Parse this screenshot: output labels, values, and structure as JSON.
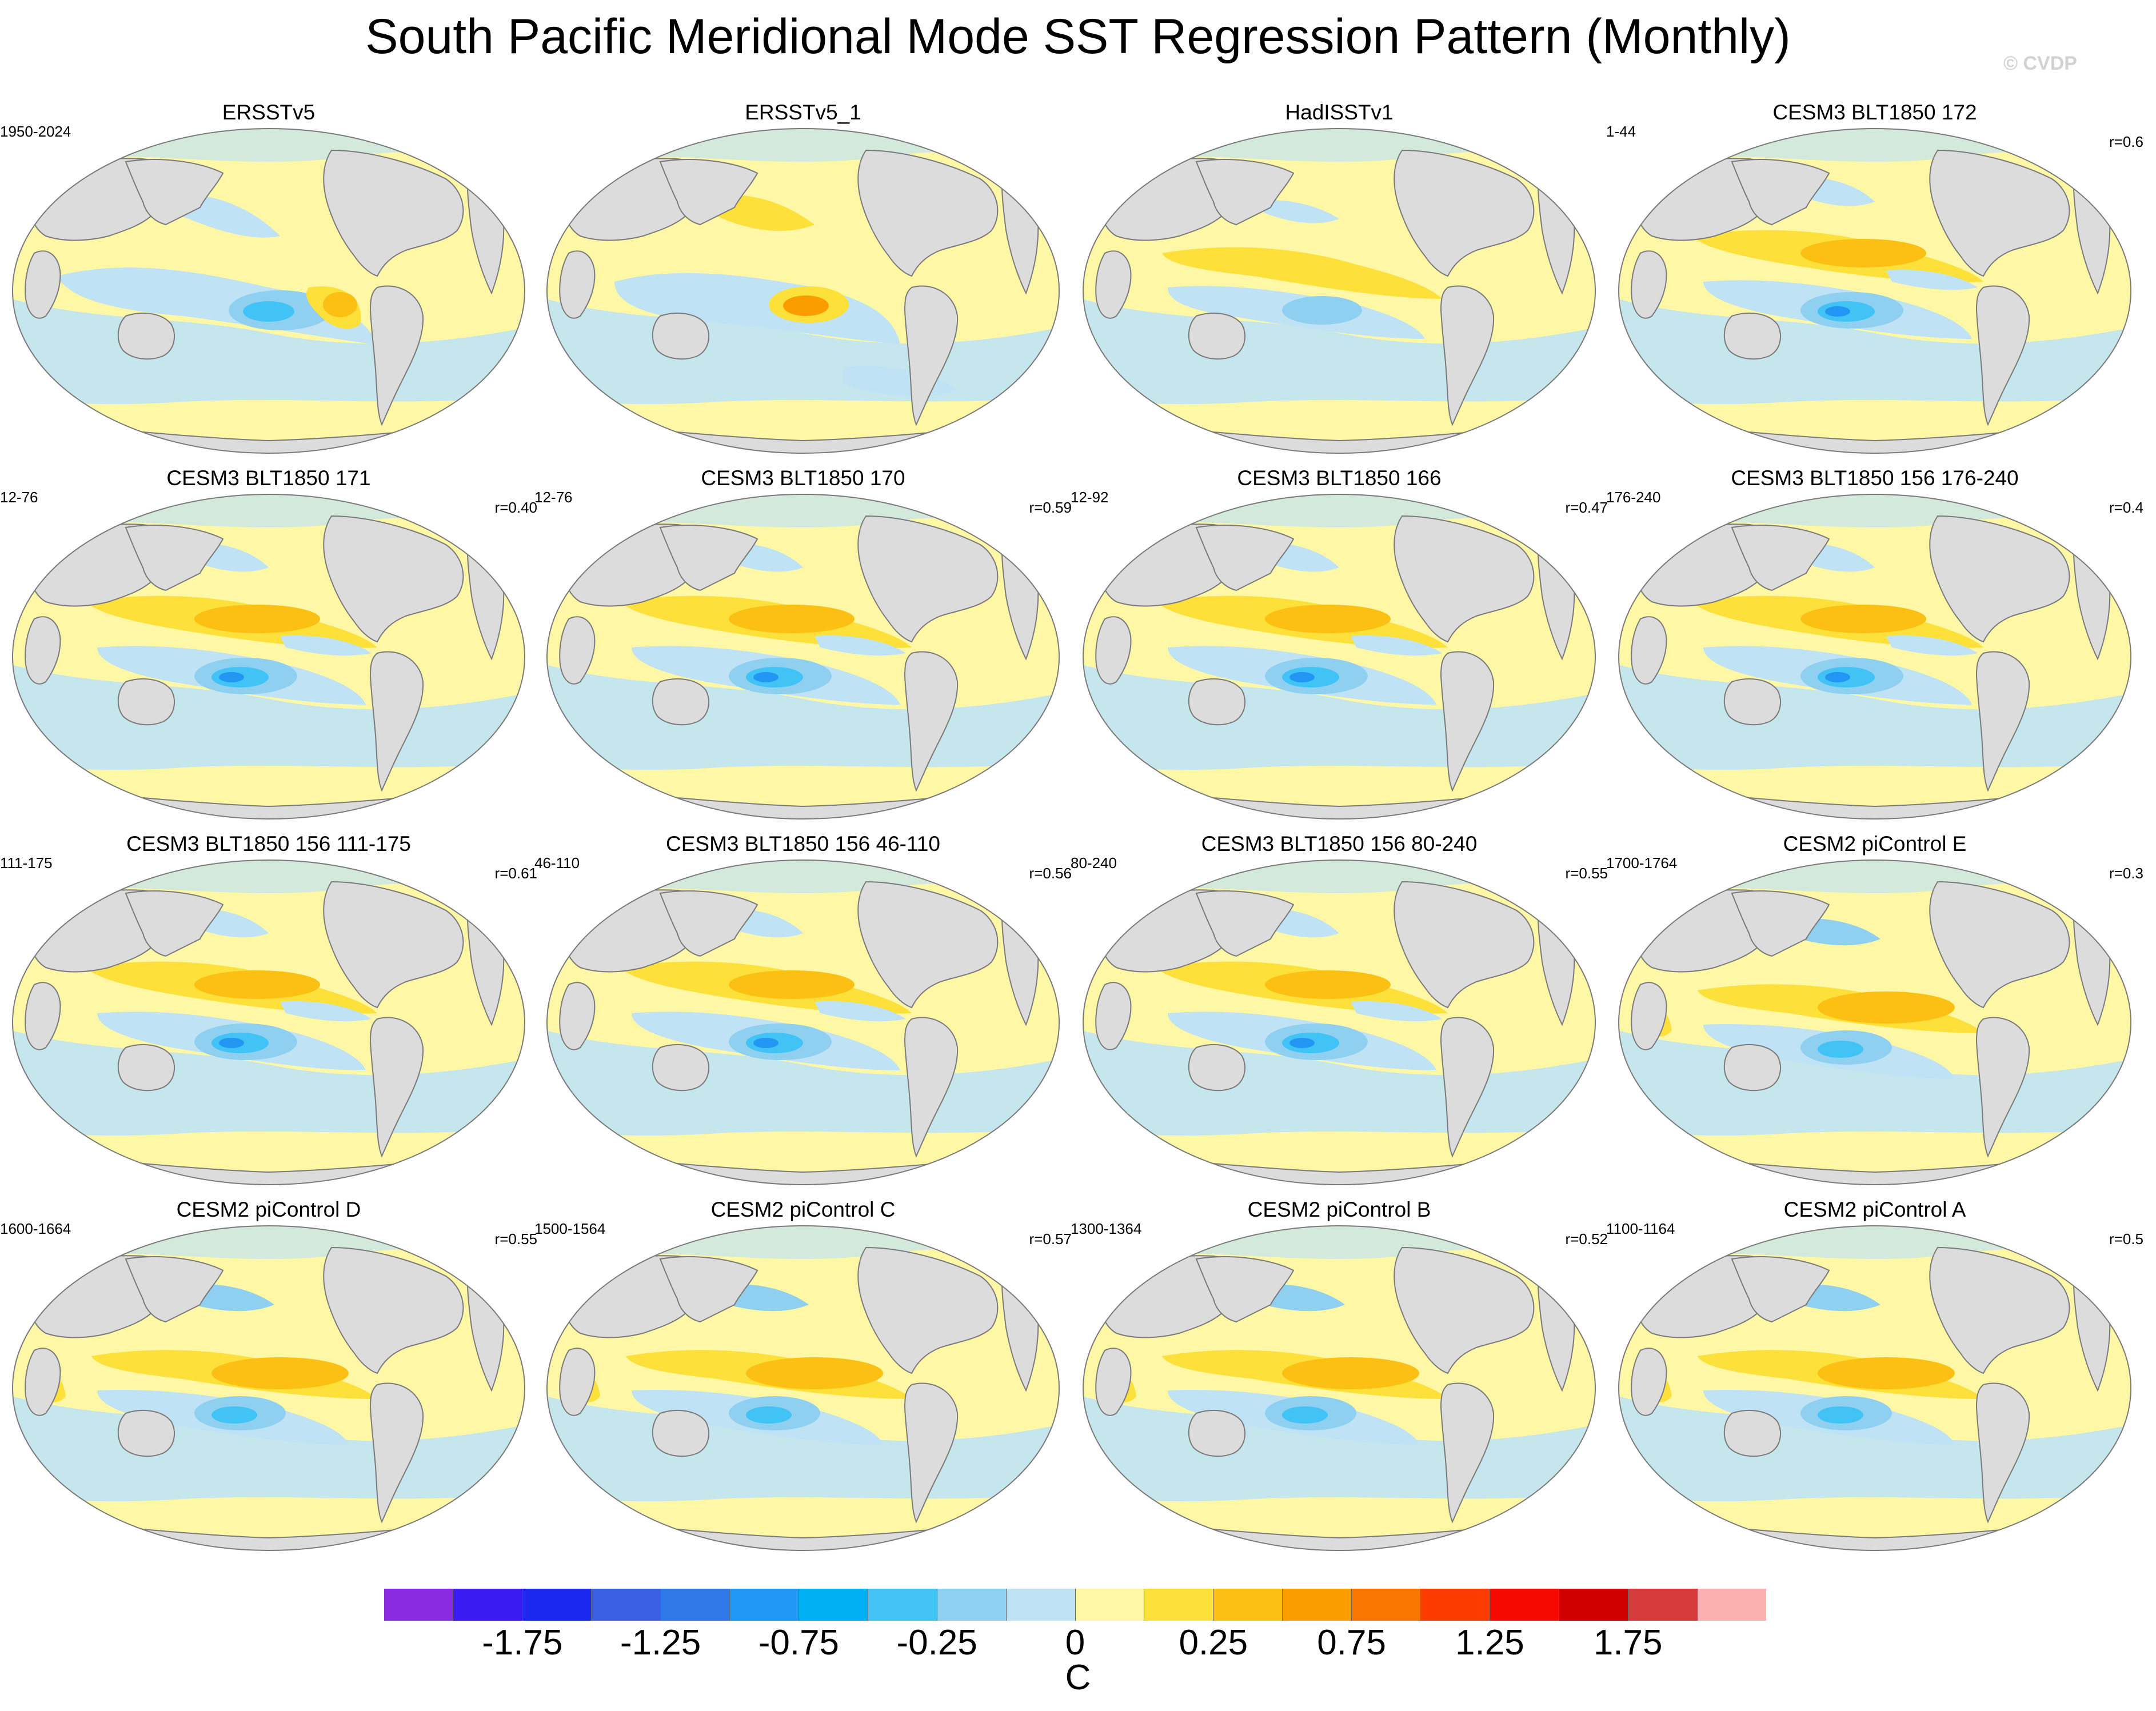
{
  "title": "South Pacific Meridional Mode SST Regression Pattern (Monthly)",
  "watermark": "© CVDP",
  "panels": [
    {
      "title": "ERSSTv5",
      "left": "1950-2024",
      "right": "",
      "variant": 0
    },
    {
      "title": "ERSSTv5_1",
      "left": "",
      "right": "",
      "variant": 1
    },
    {
      "title": "HadISSTv1",
      "left": "",
      "right": "",
      "variant": 2
    },
    {
      "title": "CESM3 BLT1850 172",
      "left": "1-44",
      "right": "r=0.6",
      "variant": 3
    },
    {
      "title": "CESM3 BLT1850 171",
      "left": "12-76",
      "right": "r=0.40",
      "variant": 3
    },
    {
      "title": "CESM3 BLT1850 170",
      "left": "12-76",
      "right": "r=0.59",
      "variant": 3
    },
    {
      "title": "CESM3 BLT1850 166",
      "left": "12-92",
      "right": "r=0.47",
      "variant": 3
    },
    {
      "title": "CESM3 BLT1850 156 176-240",
      "left": "176-240",
      "right": "r=0.4",
      "variant": 3
    },
    {
      "title": "CESM3 BLT1850 156 111-175",
      "left": "111-175",
      "right": "r=0.61",
      "variant": 3
    },
    {
      "title": "CESM3 BLT1850 156 46-110",
      "left": "46-110",
      "right": "r=0.56",
      "variant": 3
    },
    {
      "title": "CESM3 BLT1850 156 80-240",
      "left": "80-240",
      "right": "r=0.55",
      "variant": 3
    },
    {
      "title": "CESM2 piControl E",
      "left": "1700-1764",
      "right": "r=0.3",
      "variant": 4
    },
    {
      "title": "CESM2 piControl D",
      "left": "1600-1664",
      "right": "r=0.55",
      "variant": 4
    },
    {
      "title": "CESM2 piControl C",
      "left": "1500-1564",
      "right": "r=0.57",
      "variant": 4
    },
    {
      "title": "CESM2 piControl B",
      "left": "1300-1364",
      "right": "r=0.52",
      "variant": 4
    },
    {
      "title": "CESM2 piControl A",
      "left": "1100-1164",
      "right": "r=0.5",
      "variant": 4
    }
  ],
  "colorbar": {
    "colors": [
      "#8a2be2",
      "#3a1cf2",
      "#1c28f0",
      "#3a5fe0",
      "#2e78ea",
      "#2196f3",
      "#00b0f5",
      "#41c4f5",
      "#8fcff0",
      "#bfe3f4",
      "#fdf7a6",
      "#fde03a",
      "#fcc015",
      "#fa9e00",
      "#f97600",
      "#fa3c00",
      "#f50a00",
      "#d10000",
      "#d73a3a",
      "#fcb1b1"
    ],
    "labels": [
      {
        "text": "-1.75",
        "index": 2
      },
      {
        "text": "-1.25",
        "index": 4
      },
      {
        "text": "-0.75",
        "index": 6
      },
      {
        "text": "-0.25",
        "index": 8
      },
      {
        "text": "0",
        "index": 10
      },
      {
        "text": "0.25",
        "index": 12
      },
      {
        "text": "0.75",
        "index": 14
      },
      {
        "text": "1.25",
        "index": 16
      },
      {
        "text": "1.75",
        "index": 18
      }
    ],
    "unit": "C"
  }
}
